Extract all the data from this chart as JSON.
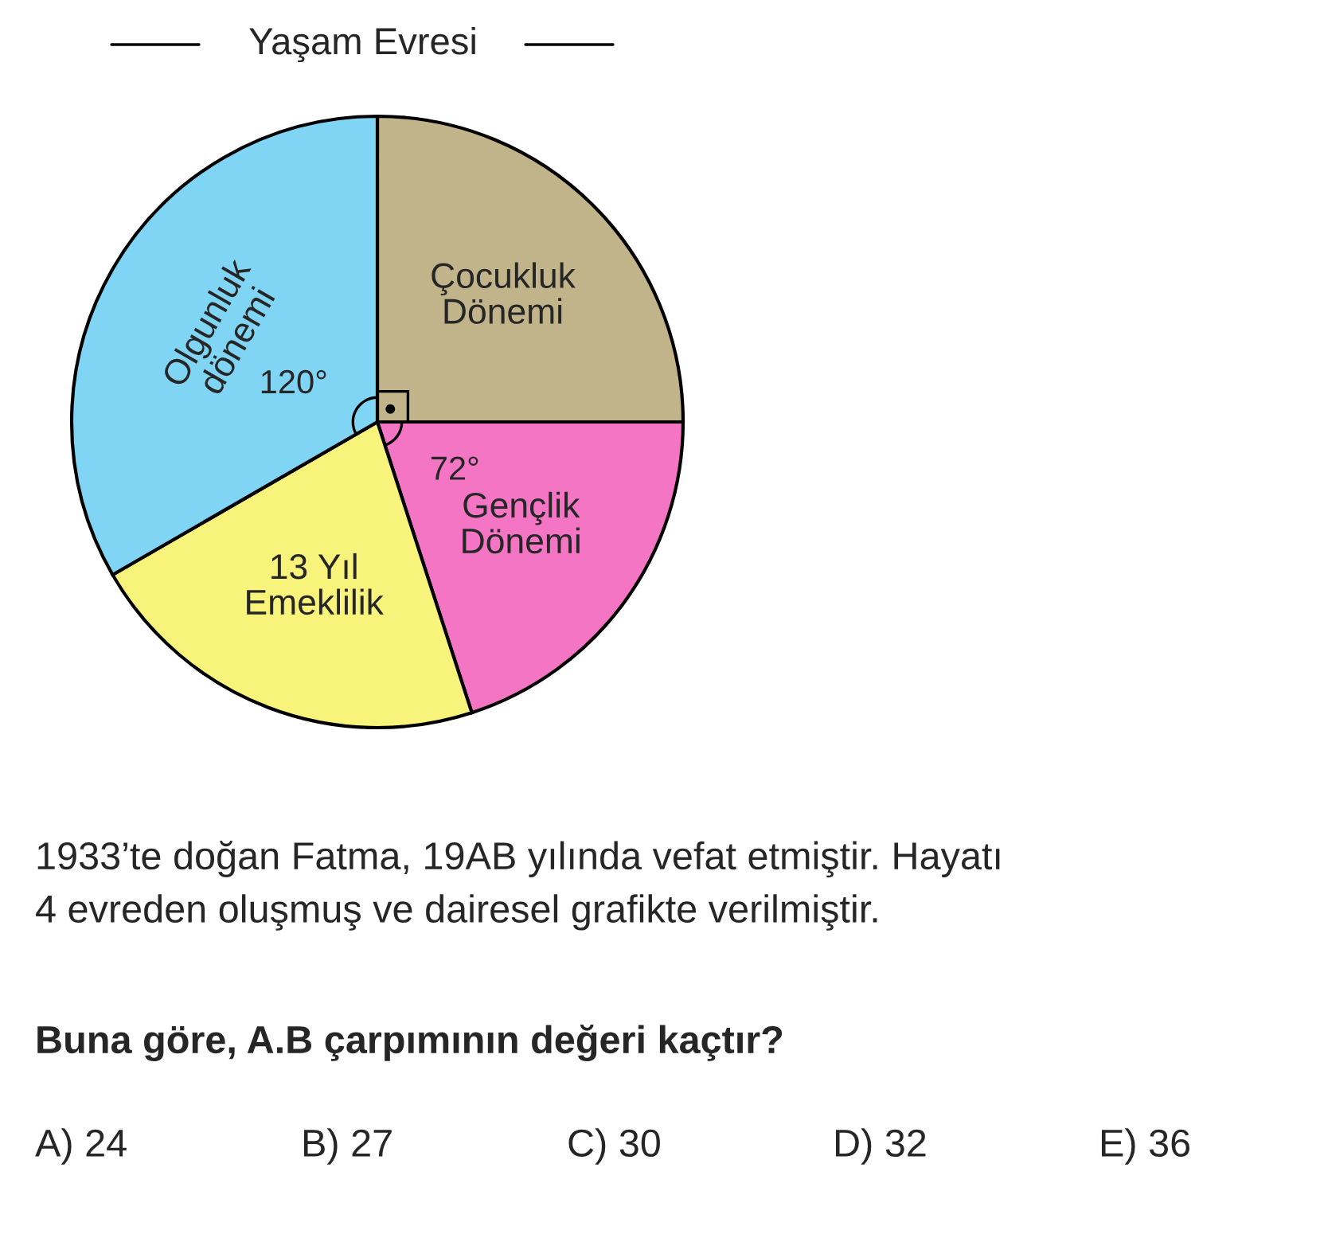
{
  "chart_data": {
    "type": "pie",
    "title": "Yaşam Evresi",
    "categories": [
      "Çocukluk\nDönemi",
      "Gençlik\nDönemi",
      "13 Yıl\nEmeklilik",
      "Olgunluk\ndönemi"
    ],
    "values": [
      90,
      72,
      78,
      120
    ],
    "colors": [
      "#c1b38a",
      "#f475c4",
      "#f8f37a",
      "#80d4f4"
    ],
    "value_labels": [
      null,
      "72°",
      null,
      "120°"
    ],
    "annotations": [
      "1933’te doğan Fatma, 19AB yılında vefat etmiştir. Hayatı\n4 evreden oluşmuş ve dairesel grafikte verilmiştir.",
      "Buna göre, A.B çarpımının değeri kaçtır?",
      "A) 24",
      "B) 27",
      "C) 30",
      "D) 32",
      "E) 36"
    ]
  }
}
